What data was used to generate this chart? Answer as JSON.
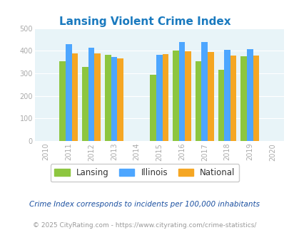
{
  "title": "Lansing Violent Crime Index",
  "years": [
    2011,
    2012,
    2013,
    2015,
    2016,
    2017,
    2018,
    2019
  ],
  "lansing": [
    355,
    327,
    383,
    295,
    400,
    353,
    316,
    375
  ],
  "illinois": [
    428,
    414,
    371,
    383,
    438,
    438,
    405,
    408
  ],
  "national": [
    387,
    387,
    366,
    384,
    397,
    394,
    379,
    378
  ],
  "color_lansing": "#8dc63f",
  "color_illinois": "#4da6ff",
  "color_national": "#f5a623",
  "bg_color": "#e8f4f8",
  "title_color": "#1a7abf",
  "xlim": [
    2009.5,
    2020.5
  ],
  "ylim": [
    0,
    500
  ],
  "yticks": [
    0,
    100,
    200,
    300,
    400,
    500
  ],
  "xtick_labels": [
    "2010",
    "2011",
    "2012",
    "2013",
    "2014",
    "2015",
    "2016",
    "2017",
    "2018",
    "2019",
    "2020"
  ],
  "xtick_values": [
    2010,
    2011,
    2012,
    2013,
    2014,
    2015,
    2016,
    2017,
    2018,
    2019,
    2020
  ],
  "bar_width": 0.27,
  "legend_labels": [
    "Lansing",
    "Illinois",
    "National"
  ],
  "footnote1": "Crime Index corresponds to incidents per 100,000 inhabitants",
  "footnote2": "© 2025 CityRating.com - https://www.cityrating.com/crime-statistics/",
  "footnote1_color": "#1a4fa0",
  "footnote2_color": "#999999",
  "tick_color": "#aaaaaa"
}
